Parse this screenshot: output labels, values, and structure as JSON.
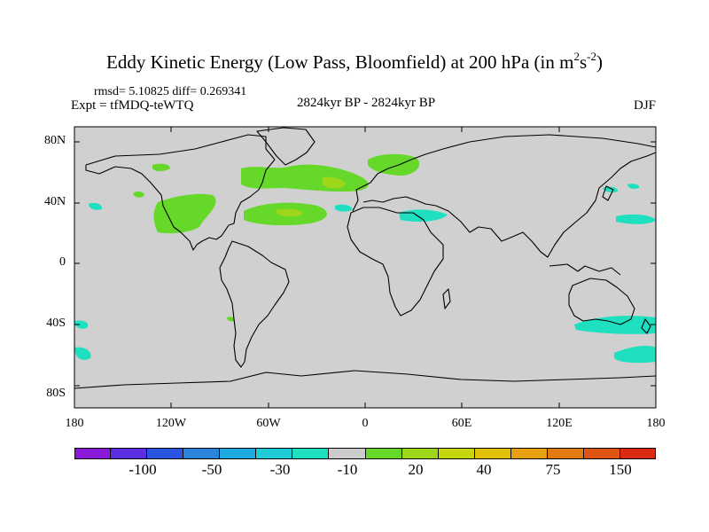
{
  "title": {
    "main": "Eddy Kinetic Energy (Low Pass, Bloomfield) at 200 hPa (in m",
    "sup1": "2",
    "mid": "s",
    "sup2": "-2",
    "end": ")"
  },
  "stats": "rmsd= 5.10825 diff= 0.269341",
  "expt": "Expt = tfMDQ-teWTQ",
  "period": "2824kyr BP - 2824kyr BP",
  "season": "DJF",
  "map": {
    "lat_labels": [
      "80N",
      "40N",
      "0",
      "40S",
      "80S"
    ],
    "lon_labels": [
      "180",
      "120W",
      "60W",
      "0",
      "60E",
      "120E",
      "180"
    ],
    "background_color": "#d0d0d0",
    "coast_color": "#000000"
  },
  "colorbar": {
    "colors": [
      "#8a1ad8",
      "#5a2ee0",
      "#2a55e0",
      "#2a84dc",
      "#1eaade",
      "#1ecbd6",
      "#1ee0c0",
      "#cccccc",
      "#66d82a",
      "#9ed61a",
      "#c6d60e",
      "#e0c20e",
      "#e6a010",
      "#e27a12",
      "#de5412",
      "#da2a12"
    ],
    "labels": [
      "-100",
      "-50",
      "-30",
      "-10",
      "20",
      "40",
      "75",
      "150"
    ],
    "label_colors": [
      "#2a55e0",
      "#2a84dc",
      "#1ecbd6",
      "#cccccc",
      "#9ed61a",
      "#e0c20e",
      "#e27a12",
      "#da2a12"
    ]
  }
}
